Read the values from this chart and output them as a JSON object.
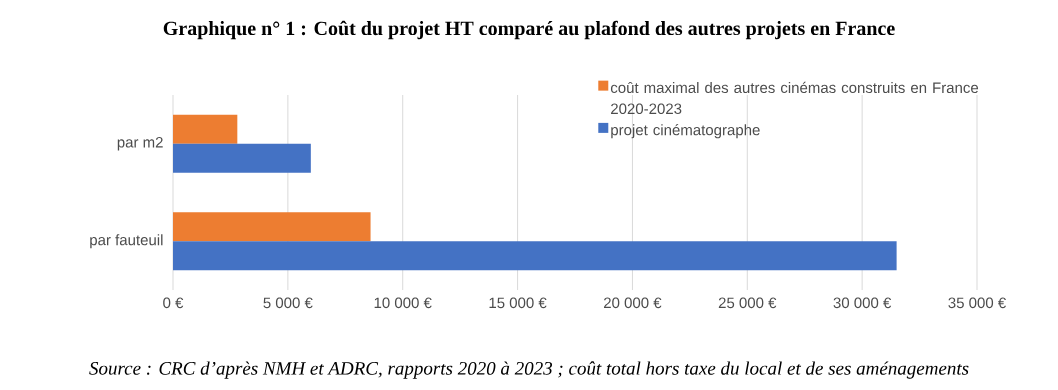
{
  "chart_data": {
    "type": "bar",
    "orientation": "horizontal",
    "title": "Graphique n° 1 :  Coût du projet HT comparé au plafond des autres projets en France",
    "annotations": [
      "Source : CRC d’après NMH et ADRC, rapports 2020 à 2023 ; coût total hors taxe du local et de ses aménagements"
    ],
    "categories": [
      "par m2",
      "par fauteuil"
    ],
    "series": [
      {
        "name": "coût maximal des autres cinémas construits en France 2020-2023",
        "color": "#ed7d31",
        "values": [
          2800,
          8600
        ]
      },
      {
        "name": "projet cinématographe",
        "color": "#4472c4",
        "values": [
          6000,
          31500
        ]
      }
    ],
    "xlim": [
      0,
      35000
    ],
    "xticks": [
      {
        "value": 0,
        "label": "0 €"
      },
      {
        "value": 5000,
        "label": "5 000 €"
      },
      {
        "value": 10000,
        "label": "10 000 €"
      },
      {
        "value": 15000,
        "label": "15 000 €"
      },
      {
        "value": 20000,
        "label": "20 000 €"
      },
      {
        "value": 25000,
        "label": "25 000 €"
      },
      {
        "value": 30000,
        "label": "30 000 €"
      },
      {
        "value": 35000,
        "label": "35 000 €"
      }
    ],
    "grid": "x",
    "legend": "top right"
  }
}
